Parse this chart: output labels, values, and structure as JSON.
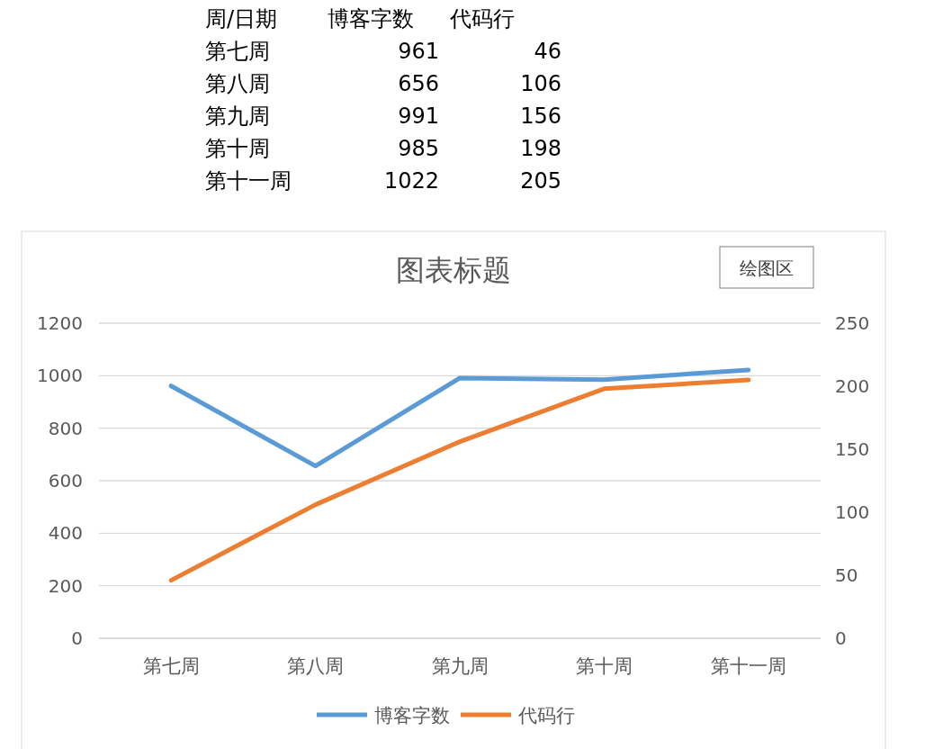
{
  "chart_data": [
    {
      "type": "other",
      "annotations": [
        "周/日期",
        "博客字数",
        "代码行",
        "第七周",
        "961",
        "46",
        "第八周",
        "656",
        "106",
        "第九周",
        "991",
        "156",
        "第十周",
        "985",
        "198",
        "第十一周",
        "1022",
        "205"
      ]
    },
    {
      "type": "line",
      "title": "图表标题",
      "categories": [
        "第七周",
        "第八周",
        "第九周",
        "第十周",
        "第十一周"
      ],
      "series": [
        {
          "name": "博客字数",
          "color": "#5b9bd5",
          "values": [
            961,
            656,
            991,
            985,
            1022
          ]
        },
        {
          "name": "代码行",
          "color": "#ed7d31",
          "values": [
            46,
            106,
            156,
            198,
            205
          ],
          "axis": "y2"
        }
      ],
      "ylim": [
        0,
        1200
      ],
      "yticks": [
        0,
        200,
        400,
        600,
        800,
        1000,
        1200
      ],
      "y2lim": [
        0,
        250
      ],
      "y2ticks": [
        0,
        50,
        100,
        150,
        200,
        250
      ],
      "grid": "y",
      "legend": "bottom",
      "marker": "none",
      "line_style": "solid",
      "annotations": [
        "绘图区"
      ]
    }
  ]
}
